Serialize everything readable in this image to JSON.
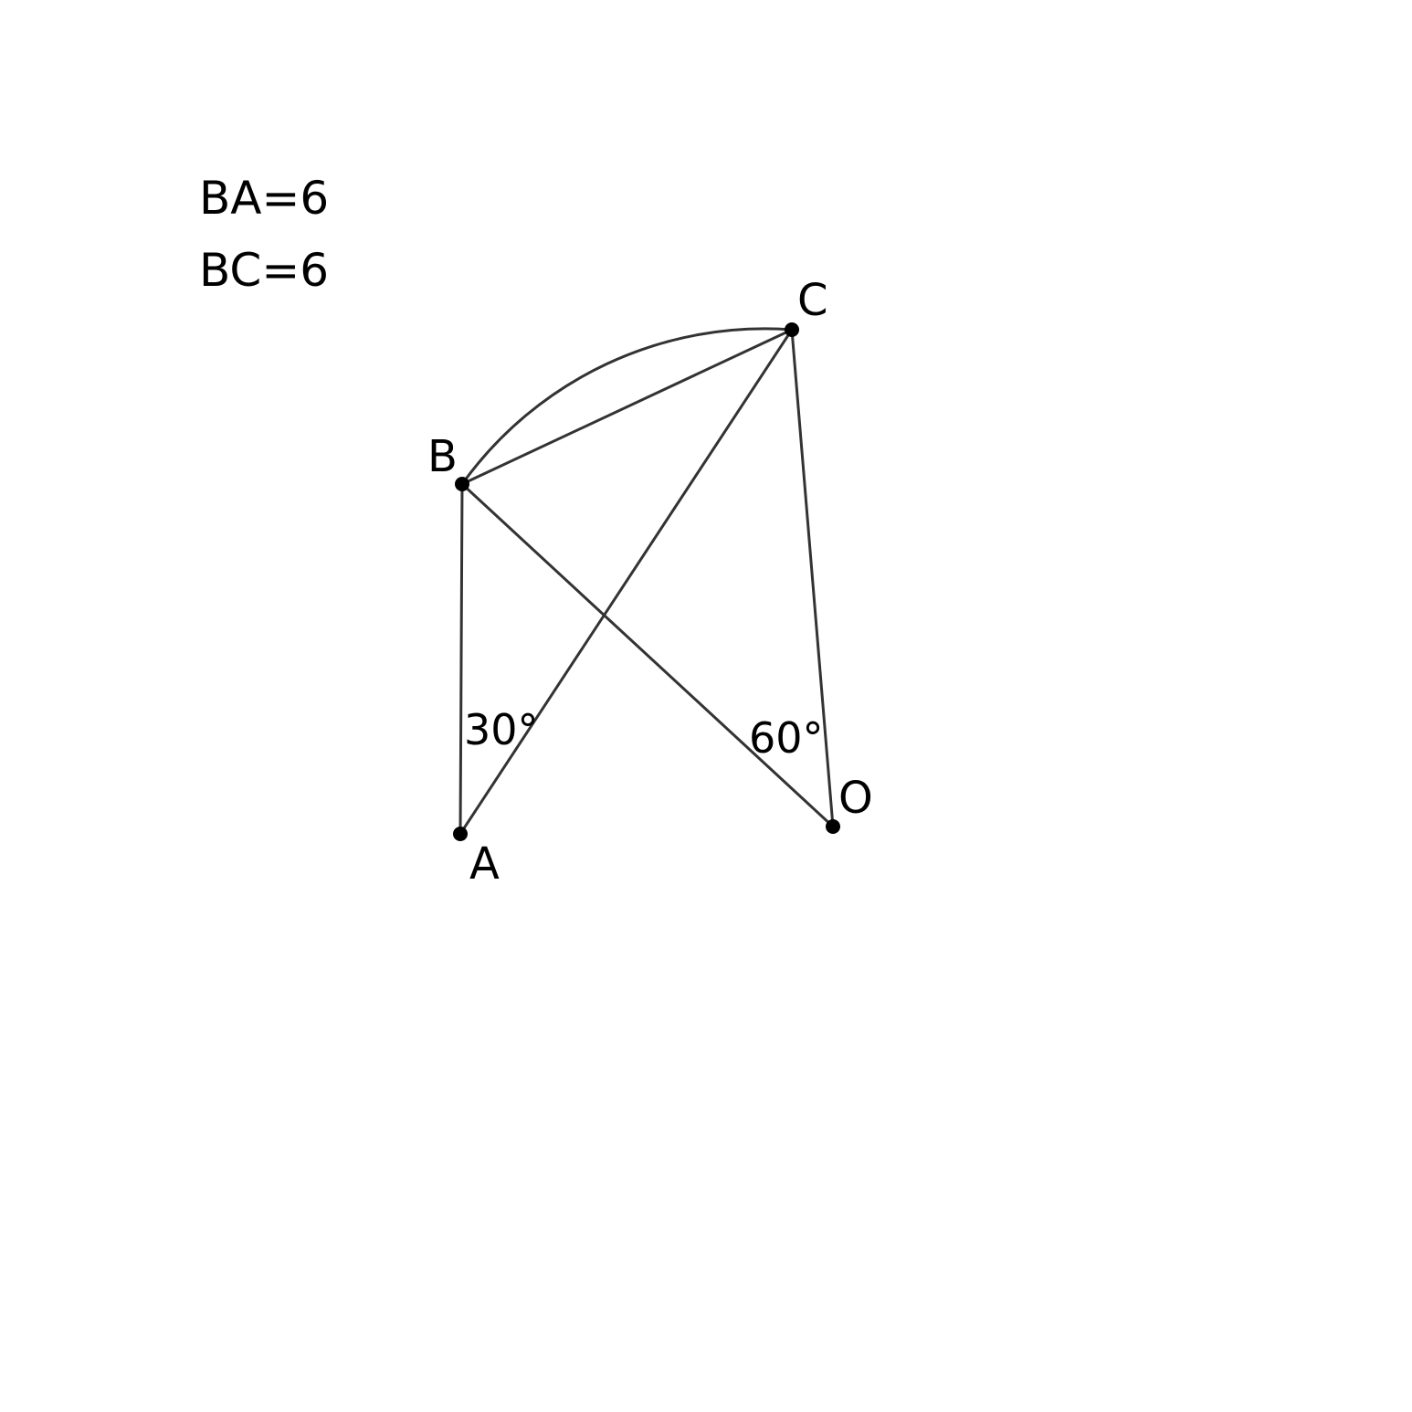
{
  "given": [
    {
      "id": "given-ba",
      "text": "BA=6"
    },
    {
      "id": "given-bc",
      "text": "BC=6"
    }
  ],
  "points": {
    "A": {
      "label": "A"
    },
    "B": {
      "label": "B"
    },
    "C": {
      "label": "C"
    },
    "O": {
      "label": "O"
    }
  },
  "segments": [
    [
      "B",
      "A"
    ],
    [
      "B",
      "C"
    ],
    [
      "A",
      "C"
    ],
    [
      "B",
      "O"
    ],
    [
      "C",
      "O"
    ]
  ],
  "arcs": [
    {
      "from": "B",
      "to": "C",
      "center": "O"
    }
  ],
  "angles": [
    {
      "vertex": "A",
      "text": "30°"
    },
    {
      "vertex": "O",
      "text": "60°"
    }
  ],
  "colors": {
    "stroke": "#333333",
    "point": "#000000",
    "text": "#000000"
  }
}
